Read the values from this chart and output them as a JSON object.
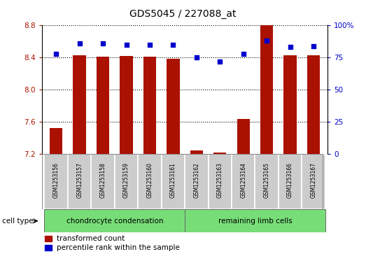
{
  "title": "GDS5045 / 227088_at",
  "samples": [
    "GSM1253156",
    "GSM1253157",
    "GSM1253158",
    "GSM1253159",
    "GSM1253160",
    "GSM1253161",
    "GSM1253162",
    "GSM1253163",
    "GSM1253164",
    "GSM1253165",
    "GSM1253166",
    "GSM1253167"
  ],
  "transformed_count": [
    7.52,
    8.43,
    8.41,
    8.42,
    8.41,
    8.38,
    7.24,
    7.21,
    7.63,
    8.8,
    8.43,
    8.43
  ],
  "percentile_rank": [
    78,
    86,
    86,
    85,
    85,
    85,
    75,
    72,
    78,
    88,
    83,
    84
  ],
  "ylim_left": [
    7.2,
    8.8
  ],
  "ylim_right": [
    0,
    100
  ],
  "yticks_left": [
    7.2,
    7.6,
    8.0,
    8.4,
    8.8
  ],
  "yticks_right": [
    0,
    25,
    50,
    75,
    100
  ],
  "group1_label": "chondrocyte condensation",
  "group2_label": "remaining limb cells",
  "group1_indices": [
    0,
    1,
    2,
    3,
    4,
    5
  ],
  "group2_indices": [
    6,
    7,
    8,
    9,
    10,
    11
  ],
  "cell_type_label": "cell type",
  "bar_color": "#aa1100",
  "dot_color": "#0000cc",
  "bar_width": 0.55,
  "bar_bottom": 7.2,
  "group_bg": "#77dd77",
  "sample_box_color": "#cccccc",
  "legend_bar_label": "transformed count",
  "legend_dot_label": "percentile rank within the sample"
}
